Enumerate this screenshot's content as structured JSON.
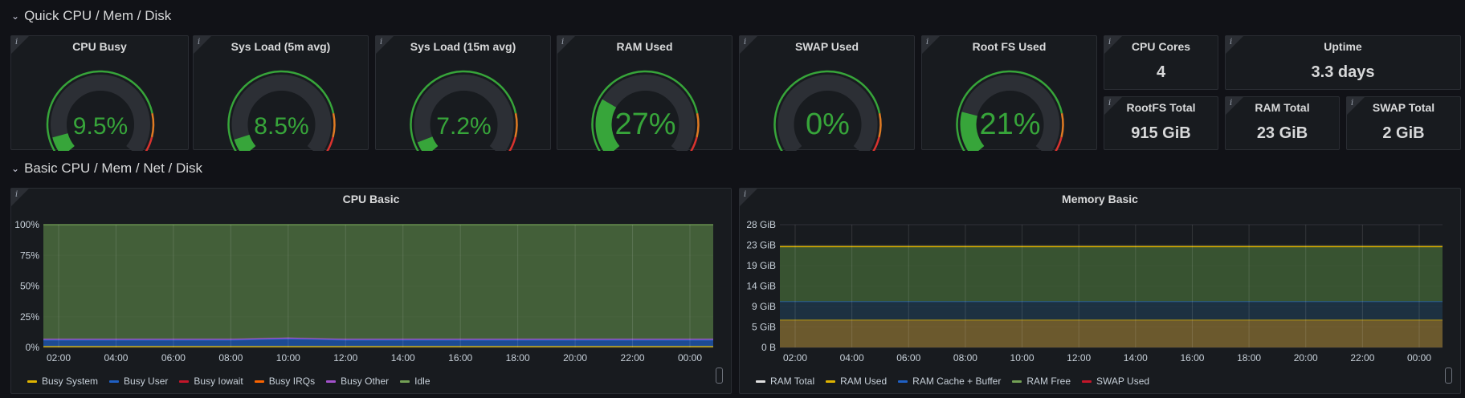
{
  "rows": [
    {
      "title": "Quick CPU / Mem / Disk"
    },
    {
      "title": "Basic CPU / Mem / Net / Disk"
    }
  ],
  "gauges": [
    {
      "title": "CPU Busy",
      "value": 9.5,
      "display": "9.5%",
      "max": 100
    },
    {
      "title": "Sys Load (5m avg)",
      "value": 8.5,
      "display": "8.5%",
      "max": 100
    },
    {
      "title": "Sys Load (15m avg)",
      "value": 7.2,
      "display": "7.2%",
      "max": 100
    },
    {
      "title": "RAM Used",
      "value": 27,
      "display": "27%",
      "max": 100
    },
    {
      "title": "SWAP Used",
      "value": 0,
      "display": "0%",
      "max": 100
    },
    {
      "title": "Root FS Used",
      "value": 21,
      "display": "21%",
      "max": 100
    }
  ],
  "stats": {
    "cpu_cores": {
      "title": "CPU Cores",
      "value": "4"
    },
    "uptime": {
      "title": "Uptime",
      "value": "3.3 days"
    },
    "rootfs_total": {
      "title": "RootFS Total",
      "value": "915 GiB"
    },
    "ram_total": {
      "title": "RAM Total",
      "value": "23 GiB"
    },
    "swap_total": {
      "title": "SWAP Total",
      "value": "2 GiB"
    }
  },
  "colors": {
    "green": "#37a53a",
    "orange": "#e07b23",
    "red": "#d9332f",
    "track": "#2c2f35",
    "idle_fill": "#4b6b3e",
    "ram_used_fill": "#7a6430",
    "cache_fill": "#1f3548",
    "free_fill": "#3e5d35"
  },
  "chart_data": [
    {
      "type": "area",
      "title": "CPU Basic",
      "x": [
        "02:00",
        "04:00",
        "06:00",
        "08:00",
        "10:00",
        "12:00",
        "14:00",
        "16:00",
        "18:00",
        "20:00",
        "22:00",
        "00:00"
      ],
      "y_ticks": [
        "0%",
        "25%",
        "50%",
        "75%",
        "100%"
      ],
      "ylim": [
        0,
        100
      ],
      "series": [
        {
          "name": "Busy System",
          "color": "#e0b400",
          "values": [
            1,
            1,
            1,
            1,
            1,
            1,
            1,
            1,
            1,
            1,
            1,
            1
          ]
        },
        {
          "name": "Busy User",
          "color": "#1f60c4",
          "values": [
            5,
            5,
            5,
            5,
            6,
            5,
            5,
            5,
            5,
            5,
            5,
            5
          ]
        },
        {
          "name": "Busy Iowait",
          "color": "#c4162a",
          "values": [
            0,
            0,
            0,
            0,
            0,
            0,
            0,
            0,
            0,
            0,
            0,
            0
          ]
        },
        {
          "name": "Busy IRQs",
          "color": "#fa6400",
          "values": [
            0,
            0,
            0,
            0,
            0,
            0,
            0,
            0,
            0,
            0,
            0,
            0
          ]
        },
        {
          "name": "Busy Other",
          "color": "#a352cc",
          "values": [
            1,
            1,
            1,
            1,
            1,
            1,
            1,
            1,
            1,
            1,
            1,
            1
          ]
        },
        {
          "name": "Idle",
          "color": "#73a055",
          "values": [
            93,
            93,
            93,
            93,
            92,
            93,
            93,
            93,
            93,
            93,
            93,
            93
          ]
        }
      ],
      "legend": "bottom"
    },
    {
      "type": "area",
      "title": "Memory Basic",
      "x": [
        "02:00",
        "04:00",
        "06:00",
        "08:00",
        "10:00",
        "12:00",
        "14:00",
        "16:00",
        "18:00",
        "20:00",
        "22:00",
        "00:00"
      ],
      "y_ticks": [
        "0 B",
        "5 GiB",
        "9 GiB",
        "14 GiB",
        "19 GiB",
        "23 GiB",
        "28 GiB"
      ],
      "ylim": [
        0,
        28
      ],
      "series": [
        {
          "name": "RAM Total",
          "color": "#e0e0e0",
          "values": [
            23,
            23,
            23,
            23,
            23,
            23,
            23,
            23,
            23,
            23,
            23,
            23
          ]
        },
        {
          "name": "RAM Used",
          "color": "#e0b400",
          "values": [
            6.3,
            6.3,
            6.3,
            6.3,
            6.3,
            6.3,
            6.3,
            6.3,
            6.3,
            6.3,
            6.3,
            6.3
          ]
        },
        {
          "name": "RAM Cache + Buffer",
          "color": "#1f60c4",
          "values": [
            4.2,
            4.2,
            4.2,
            4.2,
            4.2,
            4.2,
            4.2,
            4.2,
            4.2,
            4.2,
            4.2,
            4.2
          ]
        },
        {
          "name": "RAM Free",
          "color": "#73a055",
          "values": [
            12.5,
            12.5,
            12.5,
            12.5,
            12.5,
            12.5,
            12.5,
            12.5,
            12.5,
            12.5,
            12.5,
            12.5
          ]
        },
        {
          "name": "SWAP Used",
          "color": "#c4162a",
          "values": [
            0,
            0,
            0,
            0,
            0,
            0,
            0,
            0,
            0,
            0,
            0,
            0
          ]
        }
      ],
      "legend": "bottom"
    }
  ]
}
